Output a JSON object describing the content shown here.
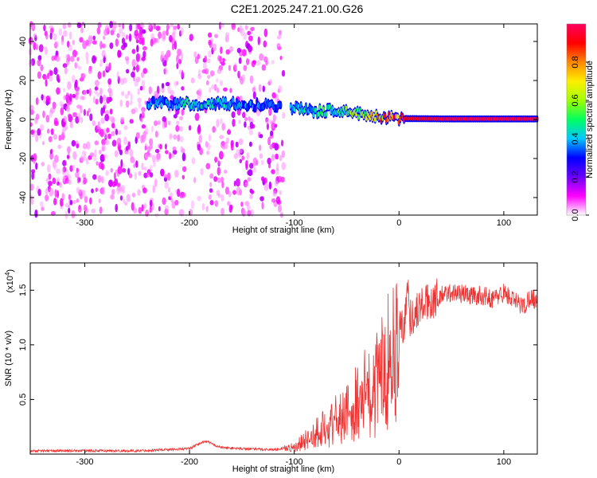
{
  "chart_data": [
    {
      "type": "heatmap",
      "title": "C2E1.2025.247.21.00.G26",
      "xlabel": "Height of straight line (km)",
      "ylabel": "Frequency (Hz)",
      "xlim": [
        -352,
        132
      ],
      "ylim": [
        -49,
        49
      ],
      "x_ticks": [
        -300,
        -200,
        -100,
        0,
        100
      ],
      "y_ticks": [
        -40,
        -20,
        0,
        20,
        40
      ],
      "colorbar": {
        "label": "Normalized spectral amplitude",
        "range": [
          0.0,
          1.0
        ],
        "ticks": [
          0.0,
          0.2,
          0.4,
          0.6,
          0.8
        ],
        "colors": [
          "#ffffff",
          "#ff00ff",
          "#6a00ff",
          "#0000ff",
          "#00c8ff",
          "#00ff60",
          "#a0ff00",
          "#ffee00",
          "#ff8800",
          "#ff0000",
          "#ff0060"
        ]
      },
      "noise_regions": [
        {
          "x": [
            -352,
            -205
          ],
          "y": [
            -49,
            49
          ],
          "level": 0.16
        },
        {
          "x": [
            -205,
            -192
          ],
          "y": [
            -49,
            49
          ],
          "level": 0.03
        },
        {
          "x": [
            -192,
            -110
          ],
          "y": [
            -49,
            49
          ],
          "level": 0.12
        }
      ],
      "signal_trace": [
        {
          "x": -240,
          "freq": 8.5,
          "amp": 0.35
        },
        {
          "x": -200,
          "freq": 8.0,
          "amp": 0.45
        },
        {
          "x": -150,
          "freq": 8.0,
          "amp": 0.38
        },
        {
          "x": -110,
          "freq": 7.0,
          "amp": 0.3
        },
        {
          "x": -100,
          "freq": 6.0,
          "amp": 0.4
        },
        {
          "x": -80,
          "freq": 4.0,
          "amp": 0.45
        },
        {
          "x": -60,
          "freq": 5.0,
          "amp": 0.5
        },
        {
          "x": -40,
          "freq": 3.0,
          "amp": 0.58
        },
        {
          "x": -20,
          "freq": 1.5,
          "amp": 0.75
        },
        {
          "x": 0,
          "freq": 0.5,
          "amp": 0.9
        },
        {
          "x": 50,
          "freq": 0.3,
          "amp": 0.97
        },
        {
          "x": 100,
          "freq": 0.3,
          "amp": 0.97
        },
        {
          "x": 132,
          "freq": 0.3,
          "amp": 0.97
        }
      ]
    },
    {
      "type": "line",
      "title": "",
      "xlabel": "Height of straight line (km)",
      "ylabel": "SNR (10 * v/v)",
      "y_multiplier": "(x10",
      "y_multiplier_exp": "4",
      "y_multiplier_close": ")",
      "xlim": [
        -352,
        132
      ],
      "ylim": [
        0,
        1.75
      ],
      "x_ticks": [
        -300,
        -200,
        -100,
        0,
        100
      ],
      "y_ticks": [
        0.5,
        1.0,
        1.5
      ],
      "y_tick_labels": [
        "0.5",
        "1.0",
        "1.5"
      ],
      "line_color": "#ee3333",
      "series": [
        {
          "x": [
            -352,
            -300,
            -250,
            -200,
            -185,
            -170,
            -150,
            -120,
            -100,
            -90,
            -80,
            -70,
            -60,
            -50,
            -40,
            -30,
            -20,
            -15,
            -10,
            -5,
            0,
            5,
            8,
            10,
            15,
            20,
            30,
            40,
            50,
            60,
            70,
            80,
            90,
            100,
            110,
            120,
            125,
            132
          ],
          "y": [
            0.03,
            0.03,
            0.03,
            0.05,
            0.12,
            0.06,
            0.05,
            0.04,
            0.07,
            0.15,
            0.22,
            0.28,
            0.35,
            0.42,
            0.55,
            0.65,
            0.78,
            0.9,
            1.0,
            1.08,
            1.15,
            1.2,
            1.58,
            1.25,
            1.28,
            1.35,
            1.4,
            1.45,
            1.48,
            1.47,
            1.45,
            1.45,
            1.42,
            1.48,
            1.4,
            1.35,
            1.45,
            1.4
          ]
        }
      ]
    }
  ]
}
